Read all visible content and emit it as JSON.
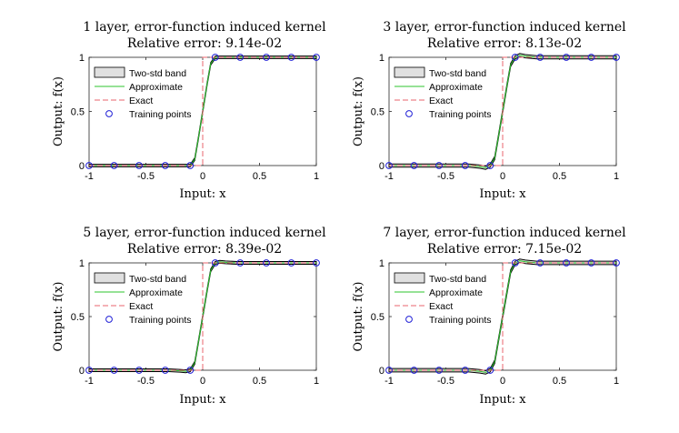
{
  "figure": {
    "x_points": [
      -1,
      -0.78,
      -0.56,
      -0.33,
      -0.11,
      0.11,
      0.33,
      0.56,
      0.78,
      1
    ]
  },
  "chart_data": [
    {
      "type": "line",
      "title": "1 layer, error-function induced kernel",
      "subtitle": "Relative error: 9.14e-02",
      "xlabel": "Input: x",
      "ylabel": "Output: f(x)",
      "xlim": [
        -1,
        1
      ],
      "ylim": [
        0,
        1
      ],
      "xticks": [
        "-1",
        "-0.5",
        "0",
        "0.5",
        "1"
      ],
      "yticks": [
        "0",
        "0.5",
        "1"
      ],
      "legend": {
        "placement": "upper-left",
        "entries": [
          "Two-std band",
          "Approximate",
          "Exact",
          "Training points"
        ]
      },
      "training_points": {
        "x": [
          -1,
          -0.78,
          -0.56,
          -0.33,
          -0.11,
          0.11,
          0.33,
          0.56,
          0.78,
          1
        ],
        "y": [
          0,
          0,
          0,
          0,
          0,
          1,
          1,
          1,
          1,
          1
        ]
      },
      "approximate": {
        "x": [
          -1,
          -0.3,
          -0.15,
          -0.11,
          -0.07,
          -0.04,
          0,
          0.04,
          0.07,
          0.11,
          0.15,
          0.3,
          1
        ],
        "y": [
          0,
          0,
          0.0,
          0.0,
          0.06,
          0.24,
          0.5,
          0.76,
          0.94,
          1.0,
          1.0,
          1,
          1
        ]
      },
      "band_halfwidth": 0.012,
      "exact": {
        "x": [
          -1,
          0,
          0,
          1
        ],
        "y": [
          0,
          0,
          1,
          1
        ]
      },
      "colors": {
        "approx": "#2ec62e",
        "exact": "#e8656e",
        "band": "#e0e0e0",
        "points": "#1f1fd6"
      }
    },
    {
      "type": "line",
      "title": "3 layer, error-function induced kernel",
      "subtitle": "Relative error: 8.13e-02",
      "xlabel": "Input: x",
      "ylabel": "Output: f(x)",
      "xlim": [
        -1,
        1
      ],
      "ylim": [
        0,
        1
      ],
      "xticks": [
        "-1",
        "-0.5",
        "0",
        "0.5",
        "1"
      ],
      "yticks": [
        "0",
        "0.5",
        "1"
      ],
      "legend": {
        "placement": "upper-left",
        "entries": [
          "Two-std band",
          "Approximate",
          "Exact",
          "Training points"
        ]
      },
      "training_points": {
        "x": [
          -1,
          -0.78,
          -0.56,
          -0.33,
          -0.11,
          0.11,
          0.33,
          0.56,
          0.78,
          1
        ],
        "y": [
          0,
          0,
          0,
          0,
          0,
          1,
          1,
          1,
          1,
          1
        ]
      },
      "approximate": {
        "x": [
          -1,
          -0.3,
          -0.2,
          -0.15,
          -0.11,
          -0.07,
          -0.04,
          0,
          0.04,
          0.07,
          0.11,
          0.15,
          0.2,
          0.3,
          1
        ],
        "y": [
          0,
          0,
          -0.01,
          -0.02,
          0.0,
          0.07,
          0.25,
          0.5,
          0.75,
          0.93,
          1.0,
          1.02,
          1.01,
          1,
          1
        ]
      },
      "band_halfwidth": 0.015,
      "exact": {
        "x": [
          -1,
          0,
          0,
          1
        ],
        "y": [
          0,
          0,
          1,
          1
        ]
      },
      "colors": {
        "approx": "#2ec62e",
        "exact": "#e8656e",
        "band": "#e0e0e0",
        "points": "#1f1fd6"
      }
    },
    {
      "type": "line",
      "title": "5 layer, error-function induced kernel",
      "subtitle": "Relative error: 8.39e-02",
      "xlabel": "Input: x",
      "ylabel": "Output: f(x)",
      "xlim": [
        -1,
        1
      ],
      "ylim": [
        0,
        1
      ],
      "xticks": [
        "-1",
        "-0.5",
        "0",
        "0.5",
        "1"
      ],
      "yticks": [
        "0",
        "0.5",
        "1"
      ],
      "legend": {
        "placement": "upper-left",
        "entries": [
          "Two-std band",
          "Approximate",
          "Exact",
          "Training points"
        ]
      },
      "training_points": {
        "x": [
          -1,
          -0.78,
          -0.56,
          -0.33,
          -0.11,
          0.11,
          0.33,
          0.56,
          0.78,
          1
        ],
        "y": [
          0,
          0,
          0,
          0,
          0,
          1,
          1,
          1,
          1,
          1
        ]
      },
      "approximate": {
        "x": [
          -1,
          -0.3,
          -0.2,
          -0.15,
          -0.11,
          -0.07,
          -0.04,
          0,
          0.04,
          0.07,
          0.11,
          0.15,
          0.2,
          0.3,
          1
        ],
        "y": [
          0,
          0,
          -0.005,
          -0.01,
          0.0,
          0.07,
          0.25,
          0.5,
          0.75,
          0.93,
          1.0,
          1.01,
          1.005,
          1,
          1
        ]
      },
      "band_halfwidth": 0.013,
      "exact": {
        "x": [
          -1,
          0,
          0,
          1
        ],
        "y": [
          0,
          0,
          1,
          1
        ]
      },
      "colors": {
        "approx": "#2ec62e",
        "exact": "#e8656e",
        "band": "#e0e0e0",
        "points": "#1f1fd6"
      }
    },
    {
      "type": "line",
      "title": "7 layer, error-function induced kernel",
      "subtitle": "Relative error: 7.15e-02",
      "xlabel": "Input: x",
      "ylabel": "Output: f(x)",
      "xlim": [
        -1,
        1
      ],
      "ylim": [
        0,
        1
      ],
      "xticks": [
        "-1",
        "-0.5",
        "0",
        "0.5",
        "1"
      ],
      "yticks": [
        "0",
        "0.5",
        "1"
      ],
      "legend": {
        "placement": "upper-left",
        "entries": [
          "Two-std band",
          "Approximate",
          "Exact",
          "Training points"
        ]
      },
      "training_points": {
        "x": [
          -1,
          -0.78,
          -0.56,
          -0.33,
          -0.11,
          0.11,
          0.33,
          0.56,
          0.78,
          1
        ],
        "y": [
          0,
          0,
          0,
          0,
          0,
          1,
          1,
          1,
          1,
          1
        ]
      },
      "approximate": {
        "x": [
          -1,
          -0.3,
          -0.2,
          -0.15,
          -0.11,
          -0.07,
          -0.04,
          0,
          0.04,
          0.07,
          0.11,
          0.15,
          0.2,
          0.3,
          1
        ],
        "y": [
          0,
          0,
          -0.01,
          -0.02,
          0.0,
          0.08,
          0.26,
          0.5,
          0.74,
          0.92,
          1.0,
          1.02,
          1.01,
          1,
          1
        ]
      },
      "band_halfwidth": 0.016,
      "exact": {
        "x": [
          -1,
          0,
          0,
          1
        ],
        "y": [
          0,
          0,
          1,
          1
        ]
      },
      "colors": {
        "approx": "#2ec62e",
        "exact": "#e8656e",
        "band": "#e0e0e0",
        "points": "#1f1fd6"
      }
    }
  ]
}
